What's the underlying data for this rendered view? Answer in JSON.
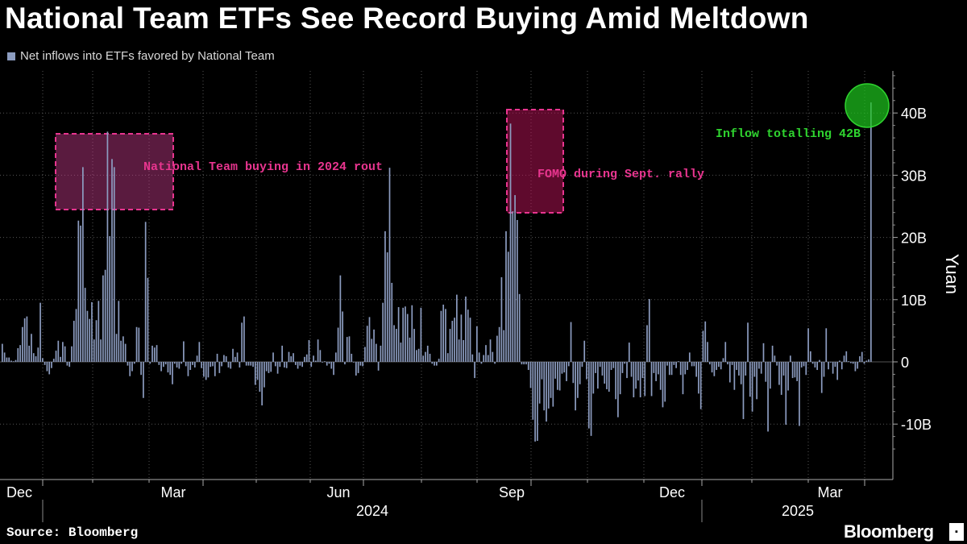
{
  "title": "National Team ETFs See Record Buying Amid Meltdown",
  "legend_label": "Net inflows into ETFs favored by National Team",
  "source": "Source: Bloomberg",
  "brand": "Bloomberg",
  "colors": {
    "background": "#000000",
    "bar": "#8c9cc0",
    "grid": "#444444",
    "highlight_pink": "#e8358f",
    "highlight_green": "#2fd42f"
  },
  "chart_data": {
    "type": "bar",
    "ylabel": "Yuan",
    "ylim": [
      -15,
      47
    ],
    "y_ticks": [
      {
        "value": 40,
        "label": "40B"
      },
      {
        "value": 30,
        "label": "30B"
      },
      {
        "value": 20,
        "label": "20B"
      },
      {
        "value": 10,
        "label": "10B"
      },
      {
        "value": 0,
        "label": "0"
      },
      {
        "value": -10,
        "label": "-10B"
      }
    ],
    "x_month_labels": [
      "Dec",
      "Mar",
      "Jun",
      "Sep",
      "Dec",
      "Mar"
    ],
    "x_year_labels": [
      "2024",
      "2025"
    ],
    "values": [
      2.9,
      1.5,
      0.7,
      0.7,
      0.2,
      0.1,
      0.3,
      2.2,
      2.7,
      5.6,
      7,
      7.3,
      2.6,
      4.5,
      1.4,
      0.9,
      2.3,
      9.5,
      0.6,
      -0.5,
      -1.5,
      -2,
      -1,
      0.5,
      1.8,
      3.4,
      0.8,
      3.2,
      2.5,
      -0.6,
      -0.8,
      2.5,
      6.6,
      8.5,
      22.7,
      21.9,
      31.3,
      11.9,
      8.2,
      6.9,
      9.6,
      3.6,
      6.7,
      9.8,
      3.6,
      13.9,
      14.8,
      37,
      20.2,
      32.6,
      31.3,
      4.5,
      9.8,
      3.4,
      4.1,
      2.9,
      -0.6,
      -2.3,
      -1.5,
      -0.3,
      5.6,
      5.5,
      -2.1,
      -5.8,
      22.5,
      13.5,
      -0.3,
      2.6,
      2.3,
      2.7,
      -0.5,
      -1.5,
      -0.8,
      -0.4,
      -1.7,
      -2.1,
      -3.6,
      -0.3,
      -0.9,
      -1.1,
      -0.3,
      3.3,
      -0.7,
      -2.3,
      -1.3,
      -0.5,
      -0.9,
      1,
      3.2,
      -1,
      -2.4,
      -2.9,
      -2.5,
      -0.8,
      -0.7,
      -2.3,
      1.3,
      -1.8,
      -0.7,
      1.1,
      0.9,
      -0.9,
      -1.1,
      2.1,
      0.8,
      1.5,
      -0.9,
      6.3,
      7.3,
      -0.6,
      -0.6,
      -0.6,
      -0.8,
      -3.7,
      -2.9,
      -4.8,
      -7,
      -4.1,
      -1.5,
      -1.8,
      -1.6,
      1.5,
      -0.7,
      -1.9,
      -0.8,
      2.6,
      -0.9,
      -1,
      1.6,
      0.9,
      1.4,
      -0.5,
      -1.1,
      -0.6,
      -0.8,
      0.8,
      1.2,
      3.5,
      -0.8,
      1,
      0.2,
      3.6,
      1.9,
      0,
      0.1,
      -0.6,
      -0.3,
      -1.1,
      -2.1,
      1.5,
      5.5,
      13.9,
      8.1,
      -0.4,
      4,
      4.1,
      1.3,
      -0.1,
      -2.2,
      -1.8,
      -0.6,
      -0.7,
      2.4,
      5.8,
      7.2,
      3.7,
      5.2,
      2.9,
      -1.4,
      2.6,
      9.5,
      21,
      17.6,
      31.2,
      12.7,
      5.9,
      5.3,
      8.8,
      3.1,
      8.7,
      8.9,
      7.7,
      3.9,
      9.1,
      5.3,
      1.9,
      2.1,
      8.7,
      1,
      1.6,
      2.6,
      1.3,
      -0.3,
      -0.6,
      -0.6,
      0.5,
      8.2,
      9.2,
      8.5,
      1.4,
      5.3,
      6.6,
      7.1,
      10.8,
      3.6,
      7.6,
      3.5,
      10.5,
      8.4,
      7.1,
      1.2,
      -2.6,
      5.7,
      1.5,
      -0.3,
      1.1,
      2.7,
      1.1,
      3.6,
      1.6,
      -0.3,
      4.2,
      5.6,
      13.6,
      5.1,
      21,
      17.7,
      38.3,
      24.2,
      26.8,
      22.8,
      10.9,
      -0.4,
      -0.4,
      -0.4,
      -1.3,
      -4.2,
      -9.3,
      -12.8,
      -12.7,
      -6.7,
      -2.8,
      -7.8,
      -9.6,
      -7.5,
      -5.8,
      -7.2,
      -2.7,
      -4.5,
      -4.6,
      -1.9,
      -1.7,
      -3.1,
      -0.7,
      6.4,
      -3.4,
      -7.8,
      -5.8,
      -3.6,
      -0.8,
      3.4,
      -2.8,
      -10.7,
      -11.9,
      -5.1,
      -1.8,
      -4.3,
      -0.8,
      -2.2,
      -3.5,
      -4.4,
      -4.8,
      -1.3,
      -1,
      -6,
      -8.9,
      -5.2,
      -1.8,
      -0.3,
      -2.6,
      3.1,
      -2.4,
      -5.7,
      -4.3,
      -3,
      -5.7,
      -2.6,
      -5.5,
      5.9,
      10.1,
      -5.5,
      -1.8,
      -3.1,
      -2,
      -4.5,
      -7.3,
      -6.4,
      -0.6,
      -2.1,
      -2.1,
      -0.5,
      -1,
      0.1,
      -2.1,
      -5.2,
      -2,
      -1.3,
      1.5,
      -0.7,
      -0.7,
      -2.4,
      -5.1,
      -7.6,
      5,
      6.5,
      3.2,
      -0.4,
      -1.7,
      -2.3,
      -1.3,
      -0.8,
      -1.2,
      0.6,
      3.2,
      -0.4,
      -3.3,
      -0.5,
      -4.5,
      -1.3,
      -2.2,
      -3.6,
      -9.2,
      -2.2,
      6.3,
      -5.6,
      -8,
      -2.4,
      -6,
      -1.1,
      -1.9,
      3,
      -3.2,
      -11.2,
      -4.3,
      2.6,
      1,
      -0.6,
      -3.7,
      -5.3,
      -2.2,
      -10.1,
      -4.6,
      1,
      -2.6,
      -2.5,
      -3.1,
      -10.3,
      -0.9,
      -0.7,
      -2.1,
      5.4,
      1.7,
      -0.3,
      -0.9,
      -1.3,
      0.3,
      -5,
      -2.4,
      5.4,
      -1.2,
      -0.1,
      -1.9,
      -0.8,
      -2.9,
      0.2,
      -1.2,
      1,
      1.7,
      0.1,
      -0.2,
      -0.3,
      -1.5,
      -1.1,
      0.9,
      1.6,
      -0.3,
      0.2,
      0.4,
      41.7
    ]
  },
  "annotations": {
    "rout": "National Team buying in 2024 rout",
    "fomo": "FOMO during Sept. rally",
    "inflow": "Inflow totalling 42B"
  }
}
